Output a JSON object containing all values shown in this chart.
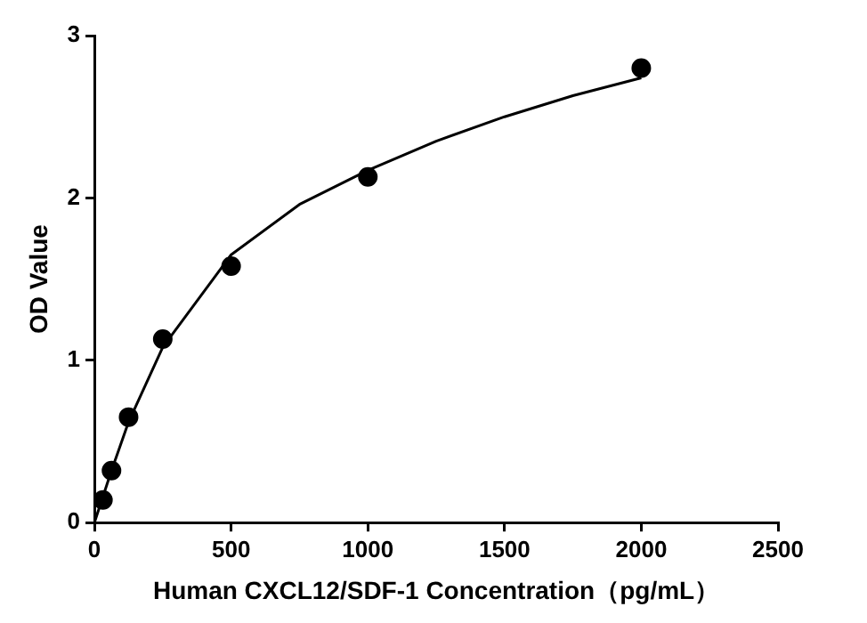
{
  "chart_data": {
    "type": "scatter",
    "xlabel": "Human CXCL12/SDF-1 Concentration（pg/mL）",
    "ylabel": "OD Value",
    "xlim": [
      0,
      2500
    ],
    "xticks": [
      0,
      500,
      1000,
      1500,
      2000,
      2500
    ],
    "ylim": [
      0,
      3
    ],
    "yticks": [
      0,
      1,
      2,
      3
    ],
    "grid": false,
    "legend": false,
    "marker": "circle",
    "series": [
      {
        "type": "scatter",
        "color": "#000000",
        "x": [
          31.25,
          62.5,
          125,
          250,
          500,
          1000,
          2000
        ],
        "values": [
          0.14,
          0.32,
          0.65,
          1.13,
          1.58,
          2.13,
          2.8
        ]
      },
      {
        "type": "line",
        "color": "#000000",
        "marker": "none",
        "line_style": "solid",
        "x": [
          0,
          31.25,
          62.5,
          125,
          250,
          500,
          750,
          1000,
          1250,
          1500,
          1750,
          2000
        ],
        "values": [
          0,
          0.16,
          0.32,
          0.62,
          1.08,
          1.65,
          1.96,
          2.17,
          2.35,
          2.5,
          2.63,
          2.74
        ]
      }
    ]
  }
}
